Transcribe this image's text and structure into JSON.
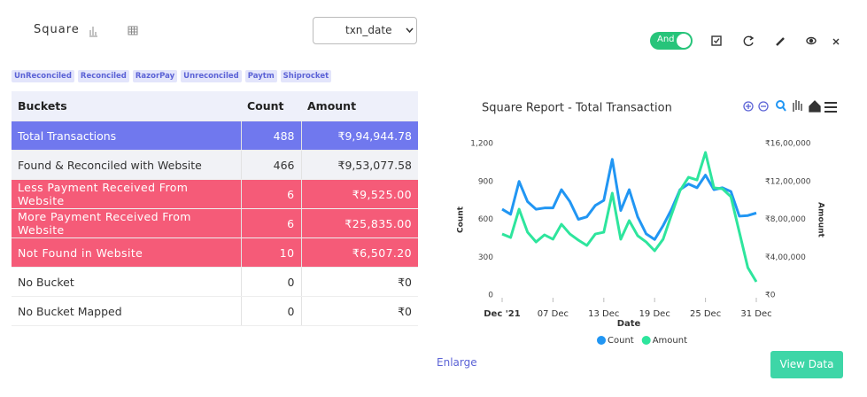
{
  "header": {
    "title": "Square",
    "select": "txn_date",
    "toggle": "And"
  },
  "tags": [
    "UnReconciled",
    "Reconciled",
    "RazorPay",
    "Unreconciled",
    "Paytm",
    "Shiprocket"
  ],
  "table": {
    "headers": [
      "Buckets",
      "Count",
      "Amount"
    ],
    "rows": [
      [
        "Total Transactions",
        "488",
        "₹9,94,944.78"
      ],
      [
        "Found & Reconciled with Website",
        "466",
        "₹9,53,077.58"
      ],
      [
        "Less Payment Received From Website",
        "6",
        "₹9,525.00"
      ],
      [
        "More Payment Received From Website",
        "6",
        "₹25,835.00"
      ],
      [
        "Not Found in Website",
        "10",
        "₹6,507.20"
      ],
      [
        "No Bucket",
        "0",
        "₹0"
      ],
      [
        "No Bucket Mapped",
        "0",
        "₹0"
      ]
    ]
  },
  "enlarge": "Enlarge",
  "view_data": "View Data",
  "chart": {
    "type": "line",
    "title": "Square Report - Total Transaction",
    "x_label": "Date",
    "y_label": "Count",
    "y2_label": "Amount",
    "x": [
      1,
      2,
      3,
      4,
      5,
      6,
      7,
      8,
      9,
      10,
      11,
      12,
      13,
      14,
      15,
      16,
      17,
      18,
      19,
      20,
      21,
      22,
      23,
      24,
      25,
      26,
      27,
      28,
      29,
      30,
      31
    ],
    "xlim": [
      1,
      31
    ],
    "xticks": [
      {
        "value": 1,
        "label": "Dec '21"
      },
      {
        "value": 7,
        "label": "07 Dec"
      },
      {
        "value": 13,
        "label": "13 Dec"
      },
      {
        "value": 19,
        "label": "19 Dec"
      },
      {
        "value": 25,
        "label": "25 Dec"
      },
      {
        "value": 31,
        "label": "31 Dec"
      }
    ],
    "ylim": [
      0,
      1200
    ],
    "yticks": [
      0,
      300,
      600,
      900,
      {
        "value": 1200,
        "label": "1,200"
      }
    ],
    "y2lim": [
      0,
      1600000
    ],
    "y2ticks": [
      {
        "value": 0,
        "label": "₹0"
      },
      {
        "value": 400000,
        "label": "₹4,00,000"
      },
      {
        "value": 800000,
        "label": "₹8,00,000"
      },
      {
        "value": 1200000,
        "label": "₹12,00,000"
      },
      {
        "value": 1600000,
        "label": "₹16,00,000"
      }
    ],
    "grid": false,
    "series": [
      {
        "name": "Count",
        "color": "#2196f3",
        "values": [
          680,
          640,
          900,
          740,
          680,
          690,
          690,
          835,
          740,
          600,
          620,
          710,
          750,
          1075,
          670,
          835,
          620,
          485,
          440,
          550,
          680,
          835,
          880,
          850,
          950,
          835,
          850,
          820,
          625,
          630,
          650
        ]
      },
      {
        "name": "Amount",
        "color": "#2ee59d",
        "axis": "y2",
        "values": [
          645000,
          608000,
          907000,
          664000,
          561000,
          636000,
          590000,
          748000,
          645000,
          580000,
          524000,
          645000,
          664000,
          1076000,
          590000,
          786000,
          627000,
          561000,
          468000,
          590000,
          851000,
          1104000,
          1244000,
          1216000,
          1506000,
          1132000,
          1123000,
          1039000,
          664000,
          290000,
          140000
        ]
      }
    ]
  }
}
